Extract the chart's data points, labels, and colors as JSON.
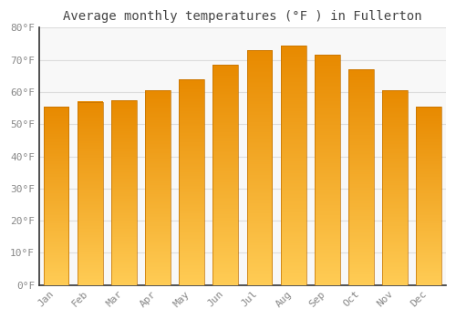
{
  "months": [
    "Jan",
    "Feb",
    "Mar",
    "Apr",
    "May",
    "Jun",
    "Jul",
    "Aug",
    "Sep",
    "Oct",
    "Nov",
    "Dec"
  ],
  "temperatures": [
    55.5,
    57.0,
    57.5,
    60.5,
    64.0,
    68.5,
    73.0,
    74.5,
    71.5,
    67.0,
    60.5,
    55.5
  ],
  "bar_color_top": "#FFCC55",
  "bar_color_bottom": "#E88A00",
  "bar_edge_color": "#C07000",
  "title": "Average monthly temperatures (°F ) in Fullerton",
  "ylim": [
    0,
    80
  ],
  "ytick_step": 10,
  "background_color": "#FFFFFF",
  "plot_bg_color": "#F8F8F8",
  "grid_color": "#DDDDDD",
  "title_fontsize": 10,
  "tick_fontsize": 8,
  "font_family": "monospace",
  "tick_color": "#888888",
  "spine_color": "#333333"
}
